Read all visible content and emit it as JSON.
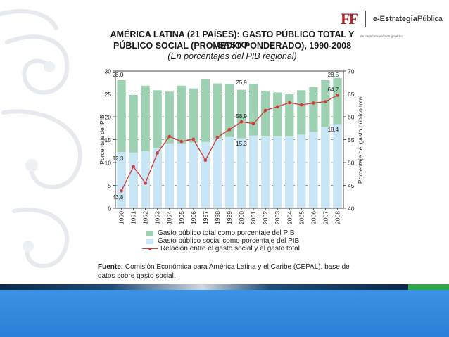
{
  "branding": {
    "logo_mark": "FF",
    "brand_prefix": "e-Estrategia",
    "brand_suffix": "Pública",
    "tagline": "de transformación en governo."
  },
  "title": {
    "line1": "AMÉRICA LATINA (21 PAÍSES): GASTO PÚBLICO TOTAL Y GASTO",
    "line2": "PÚBLICO SOCIAL (PROMEDIO PONDERADO), 1990-2008",
    "subtitle": "(En porcentajes del PIB regional)"
  },
  "source": {
    "label": "Fuente:",
    "text": "Comisión Económica para América Latina y el Caribe (CEPAL), base de datos sobre gasto social."
  },
  "colors": {
    "total_bar": "#9dd1b2",
    "social_bar": "#c8e6f6",
    "ratio_line": "#d23a3a",
    "footer_band": "#2f86da"
  },
  "chart_data": {
    "type": "bar",
    "categories": [
      "1990",
      "1991",
      "1992",
      "1993",
      "1994",
      "1995",
      "1996",
      "1997",
      "1998",
      "1999",
      "2000",
      "2001",
      "2002",
      "2003",
      "2004",
      "2005",
      "2006",
      "2007",
      "2008"
    ],
    "series": [
      {
        "name": "Gasto público total como porcentaje del PIB",
        "type": "bar",
        "axis": "left",
        "values": [
          28.0,
          24.8,
          26.8,
          25.8,
          25.5,
          26.8,
          26.2,
          28.3,
          27.3,
          27.2,
          25.9,
          27.2,
          25.6,
          25.3,
          25.0,
          25.8,
          26.5,
          28.0,
          28.5
        ]
      },
      {
        "name": "Gasto público social como porcentaje del PIB",
        "type": "bar",
        "axis": "left",
        "values": [
          12.3,
          12.2,
          12.5,
          13.2,
          14.2,
          14.2,
          14.4,
          14.5,
          15.3,
          15.6,
          15.3,
          15.9,
          15.7,
          15.7,
          15.7,
          16.1,
          16.7,
          17.8,
          18.4
        ]
      },
      {
        "name": "Relación entre el gasto social y el gasto total",
        "type": "line",
        "axis": "right",
        "values": [
          43.8,
          49.1,
          45.5,
          52.1,
          55.7,
          54.6,
          55.1,
          50.5,
          55.5,
          57.2,
          58.9,
          58.5,
          61.4,
          62.2,
          63.1,
          62.6,
          63.0,
          63.3,
          64.7
        ]
      }
    ],
    "data_labels": [
      {
        "text": "28,0"
      },
      {
        "text": "12,3"
      },
      {
        "text": "43,8"
      },
      {
        "text": "25,9"
      },
      {
        "text": "15,3"
      },
      {
        "text": "58,9"
      },
      {
        "text": "28,5"
      },
      {
        "text": "18,4"
      },
      {
        "text": "64,7"
      }
    ],
    "y_left": {
      "label": "Porcentaje del PIB",
      "min": 0,
      "max": 30,
      "ticks": [
        "0",
        "5",
        "10",
        "15",
        "20",
        "25",
        "30"
      ]
    },
    "y_right": {
      "label": "Porcentaje del gasto público total",
      "min": 40,
      "max": 70,
      "ticks": [
        "40",
        "45",
        "50",
        "55",
        "60",
        "65",
        "70"
      ]
    },
    "grid": "horizontal dashed",
    "legend_position": "bottom"
  }
}
